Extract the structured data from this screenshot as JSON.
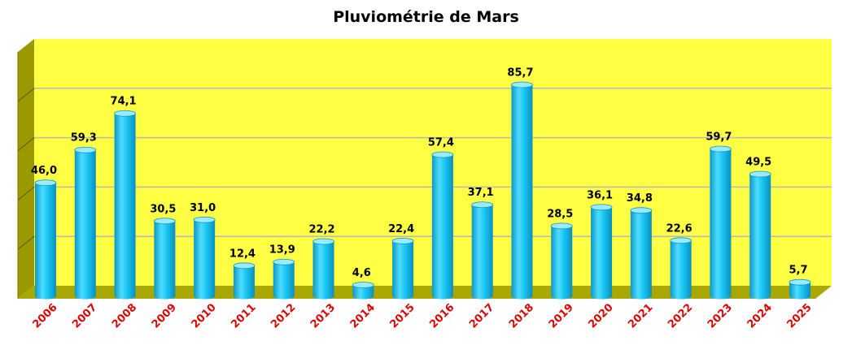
{
  "chart_data": {
    "type": "bar",
    "title": "Pluviométrie de Mars",
    "xlabel": "",
    "ylabel": "",
    "categories": [
      "2006",
      "2007",
      "2008",
      "2009",
      "2010",
      "2011",
      "2012",
      "2013",
      "2014",
      "2015",
      "2016",
      "2017",
      "2018",
      "2019",
      "2020",
      "2021",
      "2022",
      "2023",
      "2024",
      "2025"
    ],
    "values": [
      46.0,
      59.3,
      74.1,
      30.5,
      31.0,
      12.4,
      13.9,
      22.2,
      4.6,
      22.4,
      57.4,
      37.1,
      85.7,
      28.5,
      36.1,
      34.8,
      22.6,
      59.7,
      49.5,
      5.7
    ],
    "value_labels": [
      "46,0",
      "59,3",
      "74,1",
      "30,5",
      "31,0",
      "12,4",
      "13,9",
      "22,2",
      "4,6",
      "22,4",
      "57,4",
      "37,1",
      "85,7",
      "28,5",
      "36,1",
      "34,8",
      "22,6",
      "59,7",
      "49,5",
      "5,7"
    ],
    "ylim": [
      0,
      100
    ],
    "grid": true,
    "legend": "none",
    "colors": {
      "plot_background": "#ffff44",
      "side_wall": "#9a9a00",
      "floor": "#a8a800",
      "bar": "#19c6f2",
      "bar_dark": "#0a98c8",
      "bar_top": "#9beaff",
      "value_label": "#000000",
      "category_label": "#e00000"
    }
  }
}
